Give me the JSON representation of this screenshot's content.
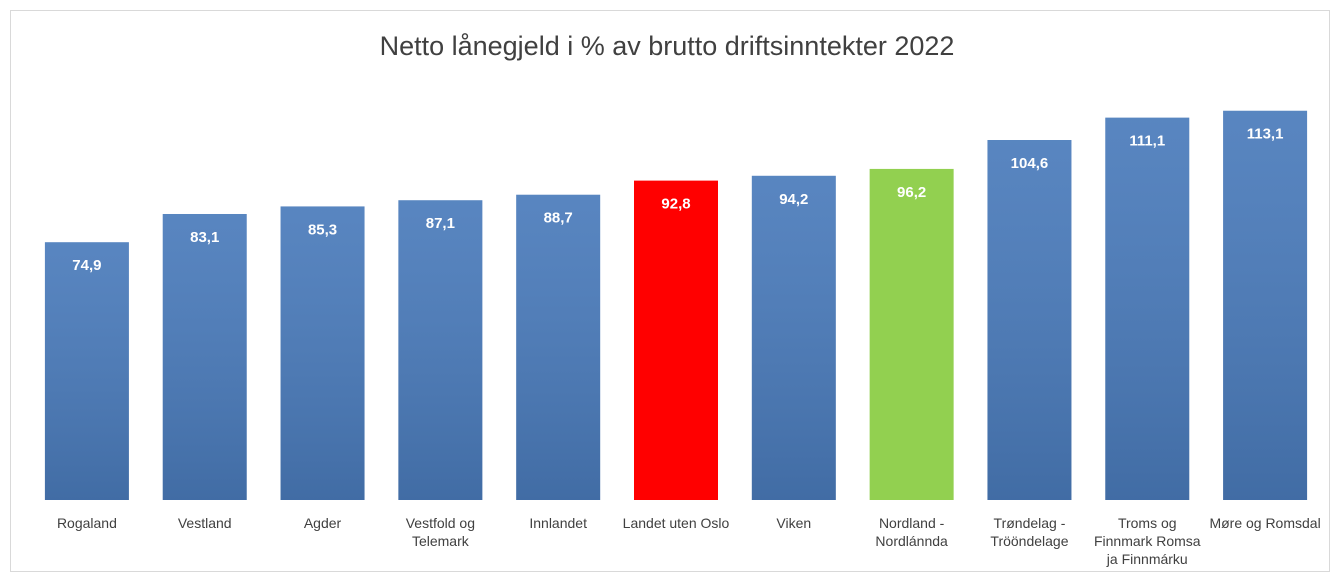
{
  "chart_data": {
    "type": "bar",
    "title": "Netto lånegjeld i % av brutto driftsinntekter 2022",
    "categories": [
      "Rogaland",
      "Vestland",
      "Agder",
      "Vestfold og Telemark",
      "Innlandet",
      "Landet uten Oslo",
      "Viken",
      "Nordland - Nordlánnda",
      "Trøndelag - Trööndelage",
      "Troms og Finnmark Romsa ja Finnmárku",
      "Møre og Romsdal"
    ],
    "values": [
      74.9,
      83.1,
      85.3,
      87.1,
      88.7,
      92.8,
      94.2,
      96.2,
      104.6,
      111.1,
      113.1
    ],
    "value_labels": [
      "74,9",
      "83,1",
      "85,3",
      "87,1",
      "88,7",
      "92,8",
      "94,2",
      "96,2",
      "104,6",
      "111,1",
      "113,1"
    ],
    "colors": [
      "#4a7bbb",
      "#4a7bbb",
      "#4a7bbb",
      "#4a7bbb",
      "#4a7bbb",
      "#ff0000",
      "#4a7bbb",
      "#92d050",
      "#4a7bbb",
      "#4a7bbb",
      "#4a7bbb"
    ],
    "ylim": [
      0,
      120
    ]
  }
}
